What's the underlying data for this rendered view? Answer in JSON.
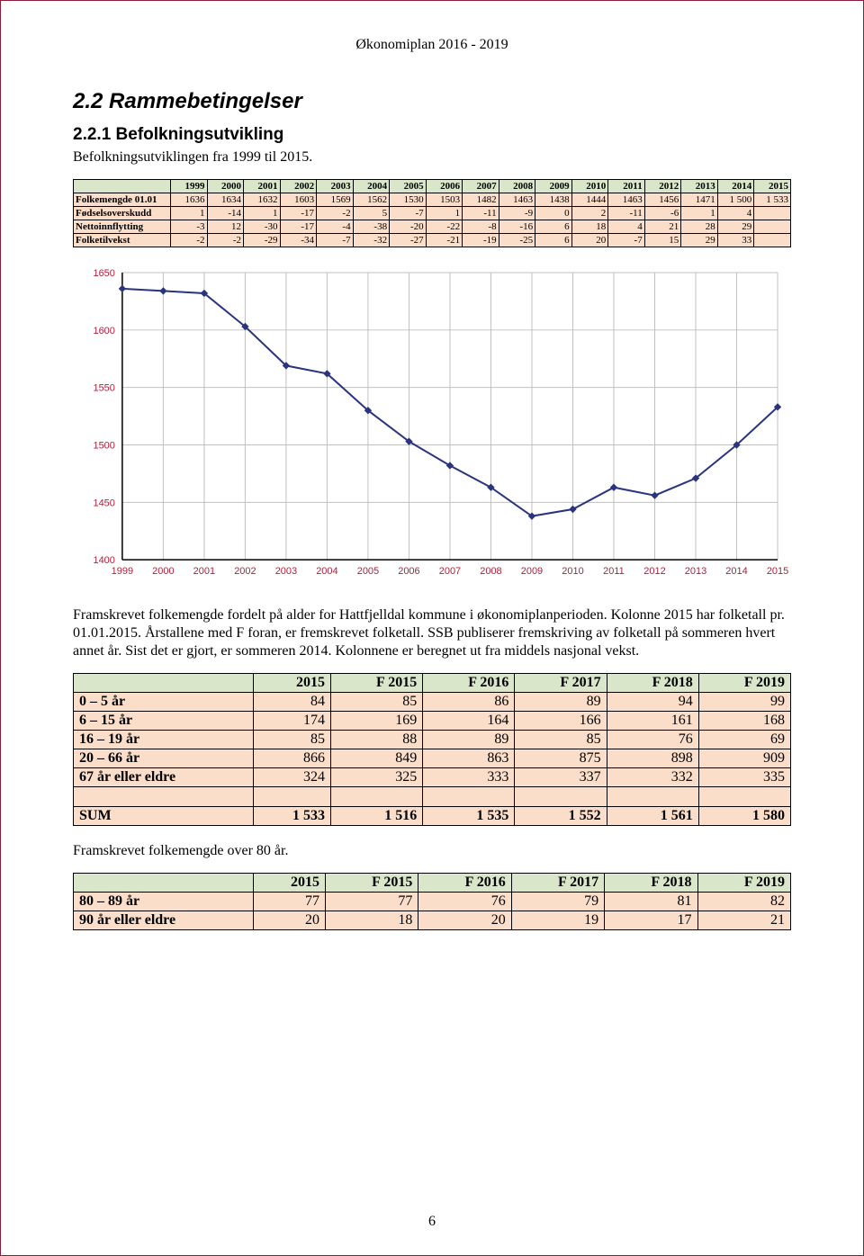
{
  "header": "Økonomiplan 2016 - 2019",
  "section_title": "2.2  Rammebetingelser",
  "subsection_title": "2.2.1  Befolkningsutvikling",
  "intro_text": "Befolkningsutviklingen fra 1999 til 2015.",
  "table1": {
    "years": [
      "1999",
      "2000",
      "2001",
      "2002",
      "2003",
      "2004",
      "2005",
      "2006",
      "2007",
      "2008",
      "2009",
      "2010",
      "2011",
      "2012",
      "2013",
      "2014",
      "2015"
    ],
    "rows": [
      {
        "label": "Folkemengde 01.01",
        "values": [
          "1636",
          "1634",
          "1632",
          "1603",
          "1569",
          "1562",
          "1530",
          "1503",
          "1482",
          "1463",
          "1438",
          "1444",
          "1463",
          "1456",
          "1471",
          "1 500",
          "1 533"
        ]
      },
      {
        "label": "Fødselsoverskudd",
        "values": [
          "1",
          "-14",
          "1",
          "-17",
          "-2",
          "5",
          "-7",
          "1",
          "-11",
          "-9",
          "0",
          "2",
          "-11",
          "-6",
          "1",
          "4",
          ""
        ]
      },
      {
        "label": "Nettoinnflytting",
        "values": [
          "-3",
          "12",
          "-30",
          "-17",
          "-4",
          "-38",
          "-20",
          "-22",
          "-8",
          "-16",
          "6",
          "18",
          "4",
          "21",
          "28",
          "29",
          ""
        ]
      },
      {
        "label": "Folketilvekst",
        "values": [
          "-2",
          "-2",
          "-29",
          "-34",
          "-7",
          "-32",
          "-27",
          "-21",
          "-19",
          "-25",
          "6",
          "20",
          "-7",
          "15",
          "29",
          "33",
          ""
        ]
      }
    ]
  },
  "chart": {
    "type": "line",
    "x_categories": [
      "1999",
      "2000",
      "2001",
      "2002",
      "2003",
      "2004",
      "2005",
      "2006",
      "2007",
      "2008",
      "2009",
      "2010",
      "2011",
      "2012",
      "2013",
      "2014",
      "2015"
    ],
    "y_values": [
      1636,
      1634,
      1632,
      1603,
      1569,
      1562,
      1530,
      1503,
      1482,
      1463,
      1438,
      1444,
      1463,
      1456,
      1471,
      1500,
      1533
    ],
    "ylim": [
      1400,
      1650
    ],
    "ytick_step": 50,
    "line_color": "#2a347f",
    "marker_color": "#2a347f",
    "marker_shape": "diamond",
    "marker_size": 7,
    "line_width": 2,
    "grid_color": "#c0c0c0",
    "axis_color": "#000000",
    "axis_label_color": "#ae1e3a",
    "axis_label_fontsize": 11,
    "plot_bg": "#ffffff"
  },
  "para2": "Framskrevet folkemengde fordelt på alder for Hattfjelldal kommune i økonomiplanperioden. Kolonne 2015 har folketall pr. 01.01.2015. Årstallene med F foran, er fremskrevet folketall. SSB publiserer fremskriving av folketall på sommeren hvert annet år. Sist det er gjort, er sommeren 2014. Kolonnene er beregnet ut fra middels nasjonal vekst.",
  "table2": {
    "cols": [
      "2015",
      "F 2015",
      "F 2016",
      "F 2017",
      "F 2018",
      "F 2019"
    ],
    "rows": [
      {
        "label": "0 – 5 år",
        "values": [
          "84",
          "85",
          "86",
          "89",
          "94",
          "99"
        ]
      },
      {
        "label": "6 – 15 år",
        "values": [
          "174",
          "169",
          "164",
          "166",
          "161",
          "168"
        ]
      },
      {
        "label": "16 – 19 år",
        "values": [
          "85",
          "88",
          "89",
          "85",
          "76",
          "69"
        ]
      },
      {
        "label": "20 – 66 år",
        "values": [
          "866",
          "849",
          "863",
          "875",
          "898",
          "909"
        ]
      },
      {
        "label": "67 år eller eldre",
        "values": [
          "324",
          "325",
          "333",
          "337",
          "332",
          "335"
        ]
      }
    ],
    "sum": {
      "label": "SUM",
      "values": [
        "1 533",
        "1 516",
        "1 535",
        "1 552",
        "1 561",
        "1 580"
      ]
    }
  },
  "para3": "Framskrevet folkemengde over 80 år.",
  "table3": {
    "cols": [
      "2015",
      "F 2015",
      "F 2016",
      "F 2017",
      "F 2018",
      "F 2019"
    ],
    "rows": [
      {
        "label": "80 – 89 år",
        "values": [
          "77",
          "77",
          "76",
          "79",
          "81",
          "82"
        ]
      },
      {
        "label": "90 år eller eldre",
        "values": [
          "20",
          "18",
          "20",
          "19",
          "17",
          "21"
        ]
      }
    ]
  },
  "footer": "6"
}
